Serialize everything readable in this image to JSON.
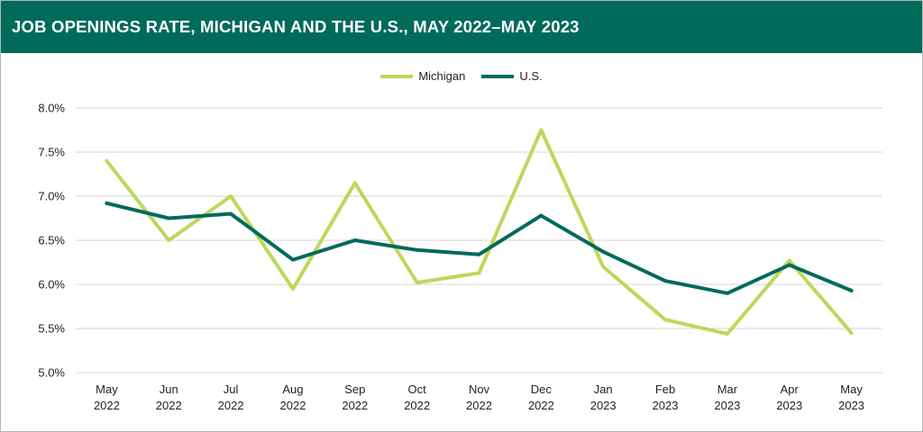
{
  "title": "JOB OPENINGS RATE, MICHIGAN AND THE U.S., MAY 2022–MAY 2023",
  "colors": {
    "header_bg": "#006a5b",
    "michigan": "#bed75b",
    "us": "#006a5b",
    "grid": "#d4d4d4"
  },
  "chart_data": {
    "type": "line",
    "title": "JOB OPENINGS RATE, MICHIGAN AND THE U.S., MAY 2022–MAY 2023",
    "xlabel": "",
    "ylabel": "",
    "categories": [
      [
        "May",
        "2022"
      ],
      [
        "Jun",
        "2022"
      ],
      [
        "Jul",
        "2022"
      ],
      [
        "Aug",
        "2022"
      ],
      [
        "Sep",
        "2022"
      ],
      [
        "Oct",
        "2022"
      ],
      [
        "Nov",
        "2022"
      ],
      [
        "Dec",
        "2022"
      ],
      [
        "Jan",
        "2023"
      ],
      [
        "Feb",
        "2023"
      ],
      [
        "Mar",
        "2023"
      ],
      [
        "Apr",
        "2023"
      ],
      [
        "May",
        "2023"
      ]
    ],
    "ylim": [
      5.0,
      8.0
    ],
    "yticks": [
      5.0,
      5.5,
      6.0,
      6.5,
      7.0,
      7.5,
      8.0
    ],
    "ytick_labels": [
      "5.0%",
      "5.5%",
      "6.0%",
      "6.5%",
      "7.0%",
      "7.5%",
      "8.0%"
    ],
    "grid": true,
    "legend_position": "top-center",
    "series": [
      {
        "name": "Michigan",
        "color": "#bed75b",
        "values": [
          7.4,
          6.5,
          7.0,
          5.95,
          7.15,
          6.02,
          6.13,
          7.75,
          6.2,
          5.6,
          5.44,
          6.27,
          5.45
        ]
      },
      {
        "name": "U.S.",
        "color": "#006a5b",
        "values": [
          6.92,
          6.75,
          6.8,
          6.28,
          6.5,
          6.39,
          6.34,
          6.78,
          6.37,
          6.04,
          5.9,
          6.22,
          5.93
        ]
      }
    ]
  }
}
